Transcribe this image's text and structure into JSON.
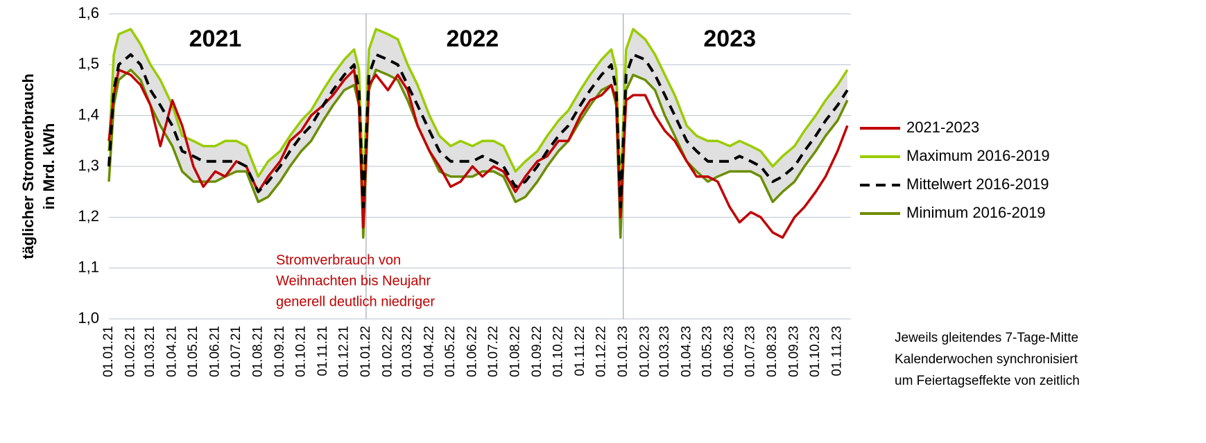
{
  "chart_data": {
    "type": "line",
    "ylabel": [
      "täglicher Stromverbrauch",
      "in Mrd. kWh"
    ],
    "ylim": [
      1.0,
      1.6
    ],
    "yticks": [
      {
        "value": 1.0,
        "label": "1,0"
      },
      {
        "value": 1.1,
        "label": "1,1"
      },
      {
        "value": 1.2,
        "label": "1,2"
      },
      {
        "value": 1.3,
        "label": "1,3"
      },
      {
        "value": 1.4,
        "label": "1,4"
      },
      {
        "value": 1.5,
        "label": "1,5"
      },
      {
        "value": 1.6,
        "label": "1,6"
      }
    ],
    "grid": true,
    "xlim": [
      "01.01.21",
      "20.11.23"
    ],
    "xticks": [
      "01.01.21",
      "01.02.21",
      "01.03.21",
      "01.04.21",
      "01.05.21",
      "01.06.21",
      "01.07.21",
      "01.08.21",
      "01.09.21",
      "01.10.21",
      "01.11.21",
      "01.12.21",
      "01.01.22",
      "01.02.22",
      "01.03.22",
      "01.04.22",
      "01.05.22",
      "01.06.22",
      "01.07.22",
      "01.08.22",
      "01.09.22",
      "01.10.22",
      "01.11.22",
      "01.12.22",
      "01.01.23",
      "01.02.23",
      "01.03.23",
      "01.04.23",
      "01.05.23",
      "01.06.23",
      "01.07.23",
      "01.08.23",
      "01.09.23",
      "01.10.23",
      "01.11.23"
    ],
    "year_lines": [
      "01.01.22",
      "01.01.23"
    ],
    "year_labels": [
      {
        "text": "2021",
        "x": "01.06.21"
      },
      {
        "text": "2022",
        "x": "01.06.22"
      },
      {
        "text": "2023",
        "x": "01.06.23"
      }
    ],
    "x": [
      "01.01.21",
      "08.01.21",
      "15.01.21",
      "01.02.21",
      "15.02.21",
      "01.03.21",
      "15.03.21",
      "01.04.21",
      "15.04.21",
      "01.05.21",
      "15.05.21",
      "01.06.21",
      "15.06.21",
      "01.07.21",
      "15.07.21",
      "01.08.21",
      "15.08.21",
      "01.09.21",
      "15.09.21",
      "01.10.21",
      "15.10.21",
      "01.11.21",
      "15.11.21",
      "01.12.21",
      "15.12.21",
      "22.12.21",
      "28.12.21",
      "05.01.22",
      "15.01.22",
      "01.02.22",
      "15.02.22",
      "01.03.22",
      "15.03.22",
      "01.04.22",
      "15.04.22",
      "01.05.22",
      "15.05.22",
      "01.06.22",
      "15.06.22",
      "01.07.22",
      "15.07.22",
      "01.08.22",
      "15.08.22",
      "01.09.22",
      "15.09.22",
      "01.10.22",
      "15.10.22",
      "01.11.22",
      "15.11.22",
      "01.12.22",
      "15.12.22",
      "22.12.22",
      "28.12.22",
      "05.01.23",
      "15.01.23",
      "01.02.23",
      "15.02.23",
      "01.03.23",
      "15.03.23",
      "01.04.23",
      "15.04.23",
      "01.05.23",
      "15.05.23",
      "01.06.23",
      "15.06.23",
      "01.07.23",
      "15.07.23",
      "01.08.23",
      "15.08.23",
      "01.09.23",
      "15.09.23",
      "01.10.23",
      "15.10.23",
      "01.11.23",
      "15.11.23"
    ],
    "band_color": "#e0e0e0",
    "series": [
      {
        "name": "2021-2023",
        "color": "#c00000",
        "dash": false,
        "values": [
          1.35,
          1.44,
          1.49,
          1.48,
          1.46,
          1.42,
          1.34,
          1.43,
          1.38,
          1.3,
          1.26,
          1.29,
          1.28,
          1.31,
          1.3,
          1.25,
          1.28,
          1.31,
          1.35,
          1.37,
          1.4,
          1.42,
          1.44,
          1.47,
          1.49,
          1.42,
          1.18,
          1.46,
          1.48,
          1.45,
          1.48,
          1.45,
          1.38,
          1.33,
          1.3,
          1.26,
          1.27,
          1.3,
          1.28,
          1.3,
          1.29,
          1.25,
          1.28,
          1.31,
          1.32,
          1.35,
          1.35,
          1.4,
          1.43,
          1.44,
          1.46,
          1.43,
          1.2,
          1.43,
          1.44,
          1.44,
          1.4,
          1.37,
          1.35,
          1.31,
          1.28,
          1.28,
          1.27,
          1.22,
          1.19,
          1.21,
          1.2,
          1.17,
          1.16,
          1.2,
          1.22,
          1.25,
          1.28,
          1.33,
          1.38
        ]
      },
      {
        "name": "Maximum 2016-2019",
        "color": "#99cc00",
        "dash": false,
        "values": [
          1.33,
          1.52,
          1.56,
          1.57,
          1.54,
          1.5,
          1.47,
          1.42,
          1.36,
          1.35,
          1.34,
          1.34,
          1.35,
          1.35,
          1.34,
          1.28,
          1.31,
          1.33,
          1.36,
          1.39,
          1.41,
          1.45,
          1.48,
          1.51,
          1.53,
          1.49,
          1.25,
          1.53,
          1.57,
          1.56,
          1.55,
          1.5,
          1.46,
          1.4,
          1.36,
          1.34,
          1.35,
          1.34,
          1.35,
          1.35,
          1.34,
          1.29,
          1.31,
          1.33,
          1.36,
          1.39,
          1.41,
          1.45,
          1.48,
          1.51,
          1.53,
          1.49,
          1.25,
          1.53,
          1.57,
          1.55,
          1.52,
          1.48,
          1.44,
          1.38,
          1.36,
          1.35,
          1.35,
          1.34,
          1.35,
          1.34,
          1.33,
          1.3,
          1.32,
          1.34,
          1.37,
          1.4,
          1.43,
          1.46,
          1.49
        ]
      },
      {
        "name": "Mittelwert 2016-2019",
        "color": "#000000",
        "dash": true,
        "values": [
          1.3,
          1.45,
          1.5,
          1.52,
          1.5,
          1.45,
          1.42,
          1.38,
          1.33,
          1.32,
          1.31,
          1.31,
          1.31,
          1.31,
          1.3,
          1.25,
          1.27,
          1.3,
          1.33,
          1.36,
          1.38,
          1.42,
          1.45,
          1.48,
          1.5,
          1.45,
          1.22,
          1.48,
          1.52,
          1.51,
          1.5,
          1.46,
          1.42,
          1.37,
          1.33,
          1.31,
          1.31,
          1.31,
          1.32,
          1.31,
          1.3,
          1.26,
          1.27,
          1.3,
          1.33,
          1.36,
          1.38,
          1.42,
          1.45,
          1.48,
          1.5,
          1.45,
          1.22,
          1.48,
          1.52,
          1.51,
          1.48,
          1.44,
          1.4,
          1.35,
          1.33,
          1.31,
          1.31,
          1.31,
          1.32,
          1.31,
          1.3,
          1.27,
          1.28,
          1.3,
          1.33,
          1.36,
          1.39,
          1.42,
          1.45
        ]
      },
      {
        "name": "Minimum 2016-2019",
        "color": "#6b8e00",
        "dash": false,
        "values": [
          1.27,
          1.42,
          1.47,
          1.49,
          1.47,
          1.42,
          1.38,
          1.34,
          1.29,
          1.27,
          1.27,
          1.27,
          1.28,
          1.29,
          1.29,
          1.23,
          1.24,
          1.27,
          1.3,
          1.33,
          1.35,
          1.39,
          1.42,
          1.45,
          1.46,
          1.42,
          1.16,
          1.45,
          1.49,
          1.48,
          1.47,
          1.43,
          1.38,
          1.33,
          1.29,
          1.28,
          1.28,
          1.28,
          1.29,
          1.29,
          1.28,
          1.23,
          1.24,
          1.27,
          1.3,
          1.33,
          1.35,
          1.39,
          1.42,
          1.45,
          1.46,
          1.42,
          1.16,
          1.45,
          1.48,
          1.47,
          1.45,
          1.4,
          1.36,
          1.31,
          1.29,
          1.27,
          1.28,
          1.29,
          1.29,
          1.29,
          1.28,
          1.23,
          1.25,
          1.27,
          1.3,
          1.33,
          1.36,
          1.39,
          1.43
        ]
      }
    ],
    "annotation": [
      "Stromverbrauch von",
      "Weihnachten bis Neujahr",
      "generell deutlich niedriger"
    ],
    "footnote": [
      "Jeweils gleitendes 7-Tage-Mitte",
      "Kalenderwochen synchronisiert",
      "um Feiertagseffekte von zeitlich"
    ]
  }
}
